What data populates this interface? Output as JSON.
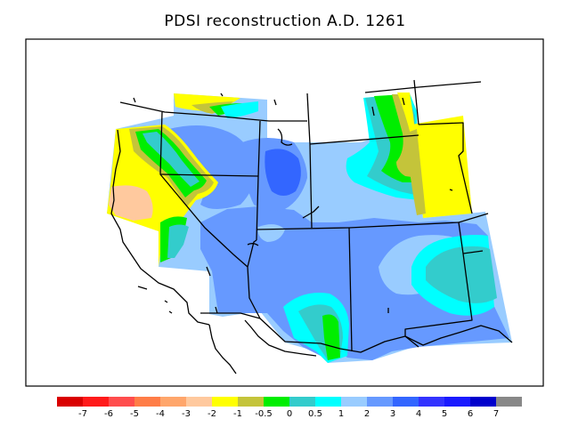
{
  "title": "PDSI reconstruction A.D. 1261",
  "colorbar": {
    "colors": [
      "#d90000",
      "#ff1a1a",
      "#ff4d4d",
      "#ff7d47",
      "#ffa66b",
      "#ffc99e",
      "#ffff00",
      "#c4c43a",
      "#00ee00",
      "#33cccc",
      "#00ffff",
      "#99ccff",
      "#6699ff",
      "#3366ff",
      "#3333ff",
      "#1a1aff",
      "#0000cc",
      "#888888"
    ],
    "labels": [
      "-7",
      "-6",
      "-5",
      "-4",
      "-3",
      "-2",
      "-1",
      "-0.5",
      "0",
      "0.5",
      "1",
      "2",
      "3",
      "4",
      "5",
      "6",
      "7"
    ]
  },
  "palette": {
    "light_blue": "#99ccff",
    "mid_blue": "#6699ff",
    "deep_blue": "#3366ff",
    "cyan": "#00ffff",
    "teal": "#33cccc",
    "green": "#00ee00",
    "olive": "#c4c43a",
    "yellow": "#ffff00",
    "peach": "#ffc99e"
  }
}
